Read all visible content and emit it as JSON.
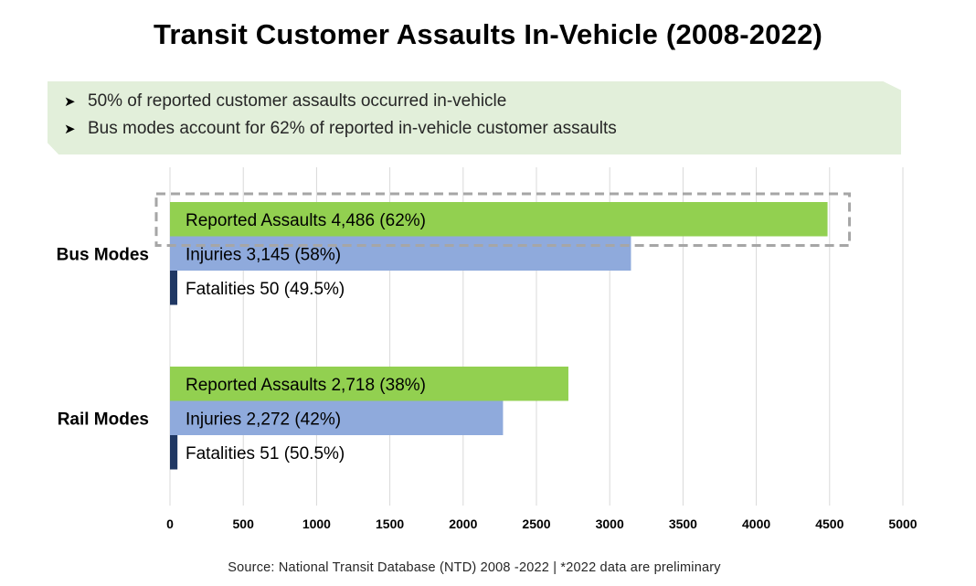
{
  "title": "Transit Customer Assaults In-Vehicle (2008-2022)",
  "callout": {
    "bullets": [
      "50% of reported customer assaults occurred in-vehicle",
      "Bus modes account for 62% of reported in-vehicle customer assaults"
    ]
  },
  "source": "Source: National Transit Database (NTD) 2008 -2022 | *2022 data are preliminary",
  "colors": {
    "assaults": "#92d050",
    "injuries": "#8faadc",
    "fatalities": "#203864",
    "gridline": "#d9d9d9",
    "highlight_box": "#a6a6a6",
    "callout_bg": "#e2efda"
  },
  "chart_data": {
    "type": "bar",
    "orientation": "horizontal",
    "title": "Transit Customer Assaults In-Vehicle (2008-2022)",
    "categories": [
      "Bus Modes",
      "Rail Modes"
    ],
    "series": [
      {
        "name": "Reported Assaults",
        "values": [
          4486,
          2718
        ],
        "labels": [
          "Reported Assaults 4,486 (62%)",
          "Reported Assaults 2,718 (38%)"
        ]
      },
      {
        "name": "Injuries",
        "values": [
          3145,
          2272
        ],
        "labels": [
          "Injuries 3,145 (58%)",
          "Injuries 2,272 (42%)"
        ]
      },
      {
        "name": "Fatalities",
        "values": [
          50,
          51
        ],
        "labels": [
          "Fatalities 50 (49.5%)",
          "Fatalities 51 (50.5%)"
        ]
      }
    ],
    "xlim": [
      0,
      5000
    ],
    "xticks": [
      0,
      500,
      1000,
      1500,
      2000,
      2500,
      3000,
      3500,
      4000,
      4500,
      5000
    ],
    "xlabel": "",
    "ylabel": "",
    "grid": "vertical",
    "legend": "none",
    "highlighted": "Reported Assaults - Bus Modes"
  }
}
